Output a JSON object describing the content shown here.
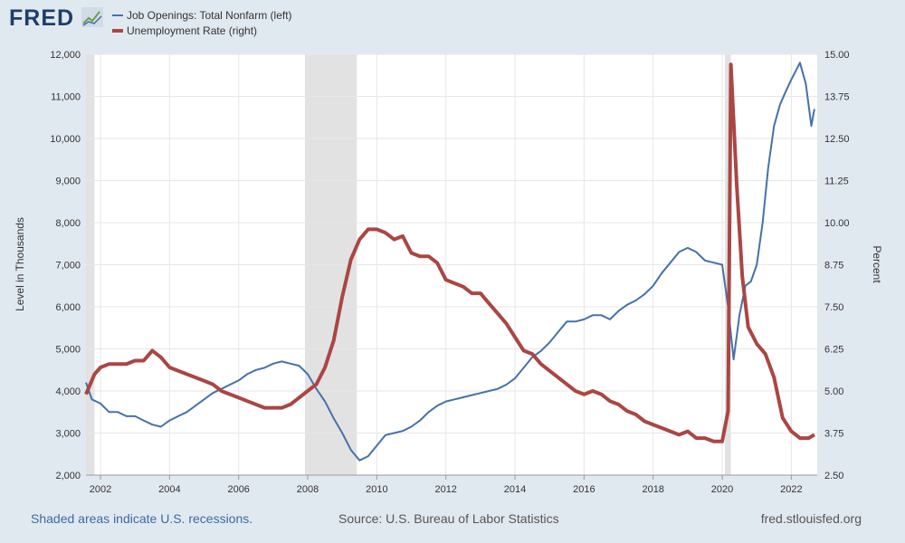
{
  "header": {
    "logo_text": "FRED",
    "logo_icon": "fred-chart-icon"
  },
  "legend": [
    {
      "label": "Job Openings: Total Nonfarm (left)",
      "color": "#4572a7"
    },
    {
      "label": "Unemployment Rate (right)",
      "color": "#aa4643"
    }
  ],
  "footer": {
    "recessions_note": "Shaded areas indicate U.S. recessions.",
    "source": "Source: U.S. Bureau of Labor Statistics",
    "site": "fred.stlouisfed.org"
  },
  "chart_data": {
    "type": "line",
    "xlim": [
      2001.58,
      2022.75
    ],
    "x_ticks": [
      "2002",
      "2004",
      "2006",
      "2008",
      "2010",
      "2012",
      "2014",
      "2016",
      "2018",
      "2020",
      "2022"
    ],
    "y_left": {
      "label": "Level in Thousands",
      "range": [
        2000,
        12000
      ],
      "ticks": [
        "2,000",
        "3,000",
        "4,000",
        "5,000",
        "6,000",
        "7,000",
        "8,000",
        "9,000",
        "10,000",
        "11,000",
        "12,000"
      ]
    },
    "y_right": {
      "label": "Percent",
      "range": [
        2.5,
        15.0
      ],
      "ticks": [
        "2.50",
        "3.75",
        "5.00",
        "6.25",
        "7.50",
        "8.75",
        "10.00",
        "11.25",
        "12.50",
        "13.75",
        "15.00"
      ]
    },
    "grid": true,
    "recessions": [
      [
        2001.58,
        2001.83
      ],
      [
        2007.92,
        2009.42
      ],
      [
        2020.08,
        2020.25
      ]
    ],
    "series": [
      {
        "name": "Job Openings: Total Nonfarm (left)",
        "axis": "left",
        "color": "#4572a7",
        "points": [
          [
            2001.58,
            4200
          ],
          [
            2001.75,
            3800
          ],
          [
            2002.0,
            3700
          ],
          [
            2002.25,
            3500
          ],
          [
            2002.5,
            3500
          ],
          [
            2002.75,
            3400
          ],
          [
            2003.0,
            3400
          ],
          [
            2003.25,
            3300
          ],
          [
            2003.5,
            3200
          ],
          [
            2003.75,
            3150
          ],
          [
            2004.0,
            3300
          ],
          [
            2004.25,
            3400
          ],
          [
            2004.5,
            3500
          ],
          [
            2004.75,
            3650
          ],
          [
            2005.0,
            3800
          ],
          [
            2005.25,
            3950
          ],
          [
            2005.5,
            4050
          ],
          [
            2005.75,
            4150
          ],
          [
            2006.0,
            4250
          ],
          [
            2006.25,
            4400
          ],
          [
            2006.5,
            4500
          ],
          [
            2006.75,
            4550
          ],
          [
            2007.0,
            4650
          ],
          [
            2007.25,
            4700
          ],
          [
            2007.5,
            4650
          ],
          [
            2007.75,
            4600
          ],
          [
            2008.0,
            4400
          ],
          [
            2008.25,
            4050
          ],
          [
            2008.5,
            3750
          ],
          [
            2008.75,
            3350
          ],
          [
            2009.0,
            3000
          ],
          [
            2009.25,
            2600
          ],
          [
            2009.5,
            2350
          ],
          [
            2009.75,
            2450
          ],
          [
            2010.0,
            2700
          ],
          [
            2010.25,
            2950
          ],
          [
            2010.5,
            3000
          ],
          [
            2010.75,
            3050
          ],
          [
            2011.0,
            3150
          ],
          [
            2011.25,
            3300
          ],
          [
            2011.5,
            3500
          ],
          [
            2011.75,
            3650
          ],
          [
            2012.0,
            3750
          ],
          [
            2012.25,
            3800
          ],
          [
            2012.5,
            3850
          ],
          [
            2012.75,
            3900
          ],
          [
            2013.0,
            3950
          ],
          [
            2013.25,
            4000
          ],
          [
            2013.5,
            4050
          ],
          [
            2013.75,
            4150
          ],
          [
            2014.0,
            4300
          ],
          [
            2014.25,
            4550
          ],
          [
            2014.5,
            4800
          ],
          [
            2014.75,
            4950
          ],
          [
            2015.0,
            5150
          ],
          [
            2015.25,
            5400
          ],
          [
            2015.5,
            5650
          ],
          [
            2015.75,
            5650
          ],
          [
            2016.0,
            5700
          ],
          [
            2016.25,
            5800
          ],
          [
            2016.5,
            5800
          ],
          [
            2016.75,
            5700
          ],
          [
            2017.0,
            5900
          ],
          [
            2017.25,
            6050
          ],
          [
            2017.5,
            6150
          ],
          [
            2017.75,
            6300
          ],
          [
            2018.0,
            6500
          ],
          [
            2018.25,
            6800
          ],
          [
            2018.5,
            7050
          ],
          [
            2018.75,
            7300
          ],
          [
            2019.0,
            7400
          ],
          [
            2019.25,
            7300
          ],
          [
            2019.5,
            7100
          ],
          [
            2019.75,
            7050
          ],
          [
            2020.0,
            7000
          ],
          [
            2020.17,
            6000
          ],
          [
            2020.33,
            4750
          ],
          [
            2020.5,
            5800
          ],
          [
            2020.67,
            6500
          ],
          [
            2020.83,
            6600
          ],
          [
            2021.0,
            7000
          ],
          [
            2021.17,
            8000
          ],
          [
            2021.33,
            9300
          ],
          [
            2021.5,
            10300
          ],
          [
            2021.67,
            10800
          ],
          [
            2021.83,
            11100
          ],
          [
            2022.0,
            11400
          ],
          [
            2022.25,
            11800
          ],
          [
            2022.42,
            11300
          ],
          [
            2022.58,
            10300
          ],
          [
            2022.67,
            10700
          ]
        ]
      },
      {
        "name": "Unemployment Rate (right)",
        "axis": "right",
        "color": "#aa4643",
        "points": [
          [
            2001.58,
            4.9
          ],
          [
            2001.83,
            5.5
          ],
          [
            2002.0,
            5.7
          ],
          [
            2002.25,
            5.8
          ],
          [
            2002.5,
            5.8
          ],
          [
            2002.75,
            5.8
          ],
          [
            2003.0,
            5.9
          ],
          [
            2003.25,
            5.9
          ],
          [
            2003.5,
            6.2
          ],
          [
            2003.75,
            6.0
          ],
          [
            2004.0,
            5.7
          ],
          [
            2004.25,
            5.6
          ],
          [
            2004.5,
            5.5
          ],
          [
            2004.75,
            5.4
          ],
          [
            2005.0,
            5.3
          ],
          [
            2005.25,
            5.2
          ],
          [
            2005.5,
            5.0
          ],
          [
            2005.75,
            4.9
          ],
          [
            2006.0,
            4.8
          ],
          [
            2006.25,
            4.7
          ],
          [
            2006.5,
            4.6
          ],
          [
            2006.75,
            4.5
          ],
          [
            2007.0,
            4.5
          ],
          [
            2007.25,
            4.5
          ],
          [
            2007.5,
            4.6
          ],
          [
            2007.75,
            4.8
          ],
          [
            2008.0,
            5.0
          ],
          [
            2008.25,
            5.2
          ],
          [
            2008.5,
            5.7
          ],
          [
            2008.75,
            6.5
          ],
          [
            2009.0,
            7.8
          ],
          [
            2009.25,
            8.9
          ],
          [
            2009.5,
            9.5
          ],
          [
            2009.75,
            9.8
          ],
          [
            2010.0,
            9.8
          ],
          [
            2010.25,
            9.7
          ],
          [
            2010.5,
            9.5
          ],
          [
            2010.75,
            9.6
          ],
          [
            2011.0,
            9.1
          ],
          [
            2011.25,
            9.0
          ],
          [
            2011.5,
            9.0
          ],
          [
            2011.75,
            8.8
          ],
          [
            2012.0,
            8.3
          ],
          [
            2012.25,
            8.2
          ],
          [
            2012.5,
            8.1
          ],
          [
            2012.75,
            7.9
          ],
          [
            2013.0,
            7.9
          ],
          [
            2013.25,
            7.6
          ],
          [
            2013.5,
            7.3
          ],
          [
            2013.75,
            7.0
          ],
          [
            2014.0,
            6.6
          ],
          [
            2014.25,
            6.2
          ],
          [
            2014.5,
            6.1
          ],
          [
            2014.75,
            5.8
          ],
          [
            2015.0,
            5.6
          ],
          [
            2015.25,
            5.4
          ],
          [
            2015.5,
            5.2
          ],
          [
            2015.75,
            5.0
          ],
          [
            2016.0,
            4.9
          ],
          [
            2016.25,
            5.0
          ],
          [
            2016.5,
            4.9
          ],
          [
            2016.75,
            4.7
          ],
          [
            2017.0,
            4.6
          ],
          [
            2017.25,
            4.4
          ],
          [
            2017.5,
            4.3
          ],
          [
            2017.75,
            4.1
          ],
          [
            2018.0,
            4.0
          ],
          [
            2018.25,
            3.9
          ],
          [
            2018.5,
            3.8
          ],
          [
            2018.75,
            3.7
          ],
          [
            2019.0,
            3.8
          ],
          [
            2019.25,
            3.6
          ],
          [
            2019.5,
            3.6
          ],
          [
            2019.75,
            3.5
          ],
          [
            2020.0,
            3.5
          ],
          [
            2020.17,
            4.4
          ],
          [
            2020.25,
            14.7
          ],
          [
            2020.42,
            11.1
          ],
          [
            2020.58,
            8.4
          ],
          [
            2020.75,
            6.9
          ],
          [
            2021.0,
            6.4
          ],
          [
            2021.25,
            6.1
          ],
          [
            2021.5,
            5.4
          ],
          [
            2021.75,
            4.2
          ],
          [
            2022.0,
            3.8
          ],
          [
            2022.25,
            3.6
          ],
          [
            2022.5,
            3.6
          ],
          [
            2022.67,
            3.7
          ]
        ]
      }
    ]
  }
}
